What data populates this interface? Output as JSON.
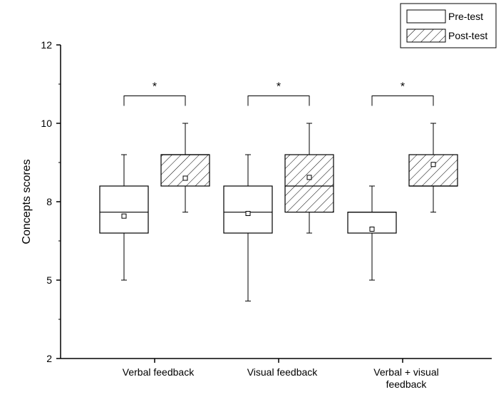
{
  "chart_data": {
    "type": "boxplot",
    "ylabel": "Concepts scores",
    "ylim": [
      2,
      12
    ],
    "yticks": [
      "2",
      "5",
      "8",
      "10",
      "12"
    ],
    "grid": false,
    "legend_placement": "top-right",
    "categories": [
      {
        "name": "verbal",
        "label_lines": [
          "Verbal feedback"
        ]
      },
      {
        "name": "visual",
        "label_lines": [
          "Visual feedback"
        ]
      },
      {
        "name": "combined",
        "label_lines": [
          "Verbal + visual",
          "feedback"
        ]
      }
    ],
    "series": [
      {
        "name": "Pre-test",
        "hatched": false,
        "boxes": [
          {
            "whisker_low": 5.0,
            "q1": 6.8,
            "median": 7.6,
            "q3": 8.4,
            "whisker_high": 9.2,
            "mean": 7.45
          },
          {
            "whisker_low": 4.2,
            "q1": 6.8,
            "median": 7.6,
            "q3": 8.4,
            "whisker_high": 9.2,
            "mean": 7.55
          },
          {
            "whisker_low": 5.0,
            "q1": 6.8,
            "median": 7.6,
            "q3": 7.6,
            "whisker_high": 8.4,
            "mean": 6.95
          }
        ]
      },
      {
        "name": "Post-test",
        "hatched": true,
        "boxes": [
          {
            "whisker_low": 7.6,
            "q1": 8.4,
            "median": 9.2,
            "q3": 9.2,
            "whisker_high": 10.0,
            "mean": 8.6
          },
          {
            "whisker_low": 6.8,
            "q1": 7.6,
            "median": 8.4,
            "q3": 9.2,
            "whisker_high": 10.0,
            "mean": 8.62
          },
          {
            "whisker_low": 7.6,
            "q1": 8.4,
            "median": 8.4,
            "q3": 9.2,
            "whisker_high": 10.0,
            "mean": 8.95
          }
        ]
      }
    ],
    "annotations": [
      {
        "text": "*",
        "category": "verbal",
        "bracket_y": 10.7
      },
      {
        "text": "*",
        "category": "visual",
        "bracket_y": 10.7
      },
      {
        "text": "*",
        "category": "combined",
        "bracket_y": 10.7
      }
    ],
    "colors": {
      "line": "#000000",
      "background": "#ffffff",
      "hatch": "#000000"
    }
  }
}
